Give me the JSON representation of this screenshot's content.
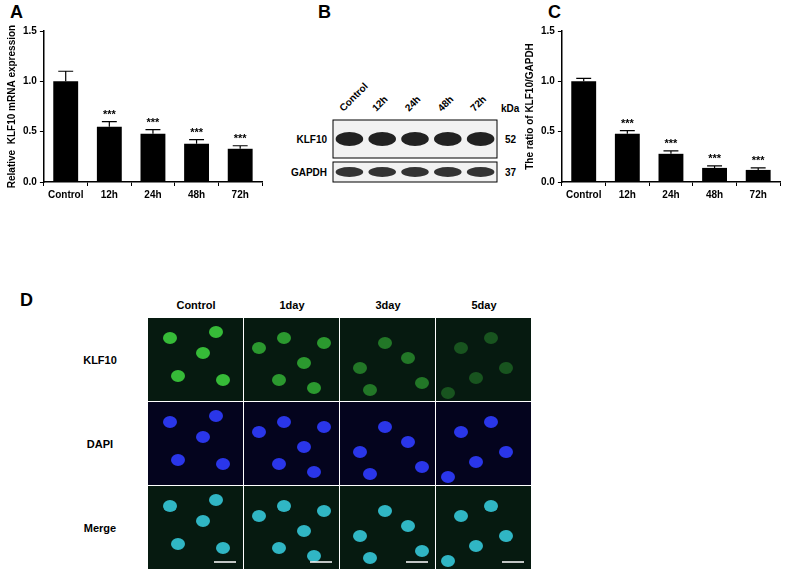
{
  "chart_data": [
    {
      "panel": "A",
      "type": "bar",
      "ylabel": "Relative  KLF10 mRNA expression",
      "categories": [
        "Control",
        "12h",
        "24h",
        "48h",
        "72h"
      ],
      "values": [
        1.0,
        0.55,
        0.48,
        0.38,
        0.33
      ],
      "errors": [
        0.1,
        0.05,
        0.04,
        0.04,
        0.03
      ],
      "significance": [
        null,
        "***",
        "***",
        "***",
        "***"
      ],
      "color": "#000000",
      "grid": false,
      "ylim": [
        0,
        1.5
      ],
      "yticks": [
        {
          "value": 0,
          "label": "0.0"
        },
        0.5,
        {
          "value": 1,
          "label": "1.0"
        },
        1.5
      ]
    },
    {
      "panel": "C",
      "type": "bar",
      "ylabel": "The ratio of KLF10/GAPDH",
      "categories": [
        "Control",
        "12h",
        "24h",
        "48h",
        "72h"
      ],
      "values": [
        1.0,
        0.48,
        0.28,
        0.14,
        0.12
      ],
      "errors": [
        0.03,
        0.03,
        0.03,
        0.02,
        0.02
      ],
      "significance": [
        null,
        "***",
        "***",
        "***",
        "***"
      ],
      "color": "#000000",
      "grid": false,
      "ylim": [
        0,
        1.5
      ],
      "yticks": [
        {
          "value": 0,
          "label": "0.0"
        },
        0.5,
        {
          "value": 1,
          "label": "1.0"
        },
        1.5
      ]
    }
  ],
  "blot": {
    "panel": "B",
    "lanes": [
      "Control",
      "12h",
      "24h",
      "48h",
      "72h"
    ],
    "unit": "kDa",
    "rows": [
      {
        "name": "KLF10",
        "kda": 52
      },
      {
        "name": "GAPDH",
        "kda": 37
      }
    ]
  },
  "microscopy": {
    "panel": "D",
    "columns": [
      "Control",
      "1day",
      "3day",
      "5day"
    ],
    "rows": [
      {
        "name": "KLF10",
        "color": "#3fd83f"
      },
      {
        "name": "DAPI",
        "color": "#2f3cff"
      },
      {
        "name": "Merge",
        "color": "#35c8d8"
      }
    ]
  }
}
